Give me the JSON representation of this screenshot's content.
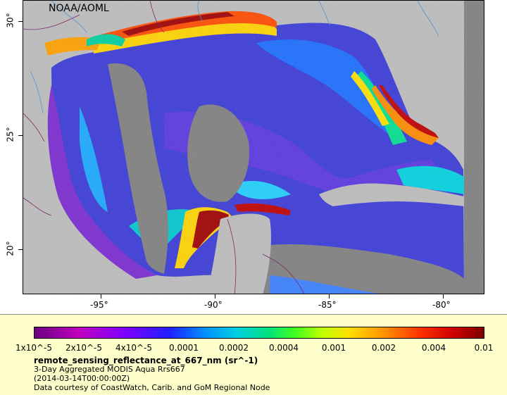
{
  "map": {
    "credit": "NOAA/AOML",
    "lon_ticks": [
      "-95°",
      "-90°",
      "-85°",
      "-80°"
    ],
    "lat_ticks": [
      "30°",
      "25°",
      "20°"
    ]
  },
  "legend": {
    "colorbar_labels": [
      "1x10^-5",
      "2x10^-5",
      "4x10^-5",
      "0.0001",
      "0.0002",
      "0.0004",
      "0.001",
      "0.002",
      "0.004",
      "0.01"
    ],
    "variable": "remote_sensing_reflectance_at_667_nm (sr^-1)",
    "product": "3-Day Aggregated MODIS Aqua Rrs667",
    "date": "(2014-03-14T00:00:00Z)",
    "courtesy": "Data courtesy of CoastWatch, Carib. and GoM Regional Node"
  },
  "colors": {
    "land": "#bdbdbd",
    "nodata": "#808080",
    "panel": "#ffffcc"
  }
}
